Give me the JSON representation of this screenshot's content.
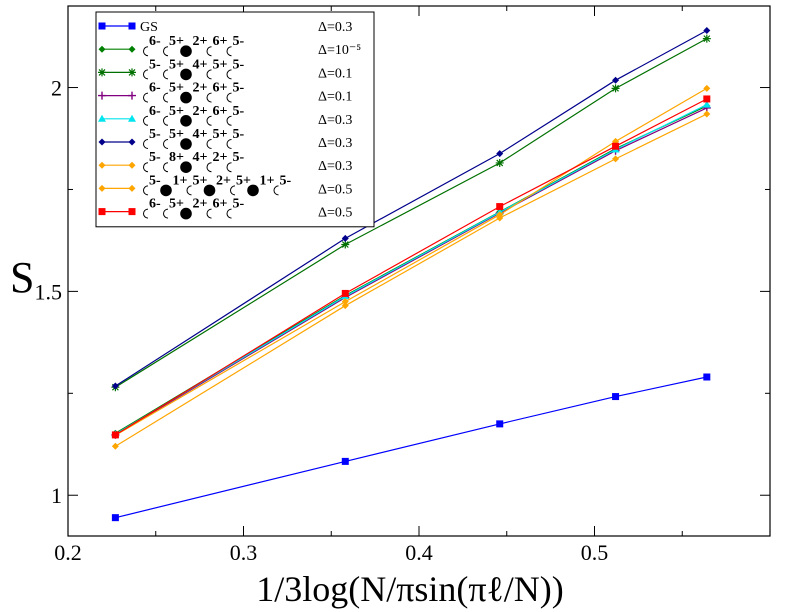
{
  "chart_data": {
    "type": "line",
    "title": "",
    "xlabel": "1/3log(N/πsin(πℓ/N))",
    "ylabel": "S",
    "xlim": [
      0.2,
      0.6
    ],
    "ylim": [
      0.9,
      2.2
    ],
    "xticks": [
      0.2,
      0.3,
      0.4,
      0.5
    ],
    "xtick_labels": [
      "0.2",
      "0.3",
      "0.4",
      "0.5"
    ],
    "yticks": [
      1.0,
      1.5,
      2.0
    ],
    "ytick_labels": [
      "1",
      "1.5",
      "2"
    ],
    "legend_position": "top-left",
    "x": [
      0.227,
      0.358,
      0.446,
      0.512,
      0.564
    ],
    "series": [
      {
        "name": "GS",
        "delta": "Δ=0.3",
        "color": "#0000ff",
        "marker": "square",
        "values": [
          0.945,
          1.083,
          1.175,
          1.242,
          1.29
        ]
      },
      {
        "name": "○6-○5+●2+○6+○5-",
        "delta": "Δ=10⁻⁵",
        "color": "#008000",
        "marker": "diamond",
        "values": [
          1.152,
          1.49,
          1.695,
          1.85,
          1.955
        ]
      },
      {
        "name": "○5-○5+●4+○5+○5-",
        "delta": "Δ=0.1",
        "color": "#007000",
        "marker": "star",
        "values": [
          1.265,
          1.615,
          1.815,
          1.998,
          2.12
        ]
      },
      {
        "name": "○6-○5+●2+○6+○5-",
        "delta": "Δ=0.1",
        "color": "#800080",
        "marker": "plus",
        "values": [
          1.148,
          1.485,
          1.692,
          1.845,
          1.95
        ]
      },
      {
        "name": "○6-○5+●2+○6+○5-",
        "delta": "Δ=0.3",
        "color": "#00e5ee",
        "marker": "triangle",
        "values": [
          1.15,
          1.488,
          1.694,
          1.848,
          1.958
        ]
      },
      {
        "name": "○5-○5+●4+○5+○5-",
        "delta": "Δ=0.3",
        "color": "#00008b",
        "marker": "diamond",
        "values": [
          1.268,
          1.63,
          1.838,
          2.018,
          2.14
        ]
      },
      {
        "name": "○5-○8+●4+○2+○5-",
        "delta": "Δ=0.3",
        "color": "#ffa500",
        "marker": "diamond",
        "values": [
          1.147,
          1.475,
          1.688,
          1.868,
          1.998
        ]
      },
      {
        "name": "○5-●1+○5+●2+○5+●1+○5-",
        "delta": "Δ=0.5",
        "color": "#ffa500",
        "marker": "diamond",
        "values": [
          1.12,
          1.465,
          1.68,
          1.825,
          1.935
        ]
      },
      {
        "name": "○6-○5+●2+○6+○5-",
        "delta": "Δ=0.5",
        "color": "#ff0000",
        "marker": "square",
        "values": [
          1.148,
          1.495,
          1.708,
          1.856,
          1.972
        ]
      }
    ],
    "legend": [
      {
        "plain": "GS",
        "delta": "Δ=0.3"
      },
      {
        "seq": [
          [
            "o",
            "6-"
          ],
          [
            "o",
            "5+"
          ],
          [
            "b",
            "2+"
          ],
          [
            "o",
            "6+"
          ],
          [
            "o",
            "5-"
          ]
        ],
        "delta": "Δ=10⁻⁵"
      },
      {
        "seq": [
          [
            "o",
            "5-"
          ],
          [
            "o",
            "5+"
          ],
          [
            "b",
            "4+"
          ],
          [
            "o",
            "5+"
          ],
          [
            "o",
            "5-"
          ]
        ],
        "delta": "Δ=0.1"
      },
      {
        "seq": [
          [
            "o",
            "6-"
          ],
          [
            "o",
            "5+"
          ],
          [
            "b",
            "2+"
          ],
          [
            "o",
            "6+"
          ],
          [
            "o",
            "5-"
          ]
        ],
        "delta": "Δ=0.1"
      },
      {
        "seq": [
          [
            "o",
            "6-"
          ],
          [
            "o",
            "5+"
          ],
          [
            "b",
            "2+"
          ],
          [
            "o",
            "6+"
          ],
          [
            "o",
            "5-"
          ]
        ],
        "delta": "Δ=0.3"
      },
      {
        "seq": [
          [
            "o",
            "5-"
          ],
          [
            "o",
            "5+"
          ],
          [
            "b",
            "4+"
          ],
          [
            "o",
            "5+"
          ],
          [
            "o",
            "5-"
          ]
        ],
        "delta": "Δ=0.3"
      },
      {
        "seq": [
          [
            "o",
            "5-"
          ],
          [
            "o",
            "8+"
          ],
          [
            "b",
            "4+"
          ],
          [
            "o",
            "2+"
          ],
          [
            "o",
            "5-"
          ]
        ],
        "delta": "Δ=0.3"
      },
      {
        "seq": [
          [
            "o",
            "5-"
          ],
          [
            "b",
            "1+"
          ],
          [
            "o",
            "5+"
          ],
          [
            "b",
            "2+"
          ],
          [
            "o",
            "5+"
          ],
          [
            "b",
            "1+"
          ],
          [
            "o",
            "5-"
          ]
        ],
        "delta": "Δ=0.5"
      },
      {
        "seq": [
          [
            "o",
            "6-"
          ],
          [
            "o",
            "5+"
          ],
          [
            "b",
            "2+"
          ],
          [
            "o",
            "6+"
          ],
          [
            "o",
            "5-"
          ]
        ],
        "delta": "Δ=0.5"
      }
    ]
  }
}
